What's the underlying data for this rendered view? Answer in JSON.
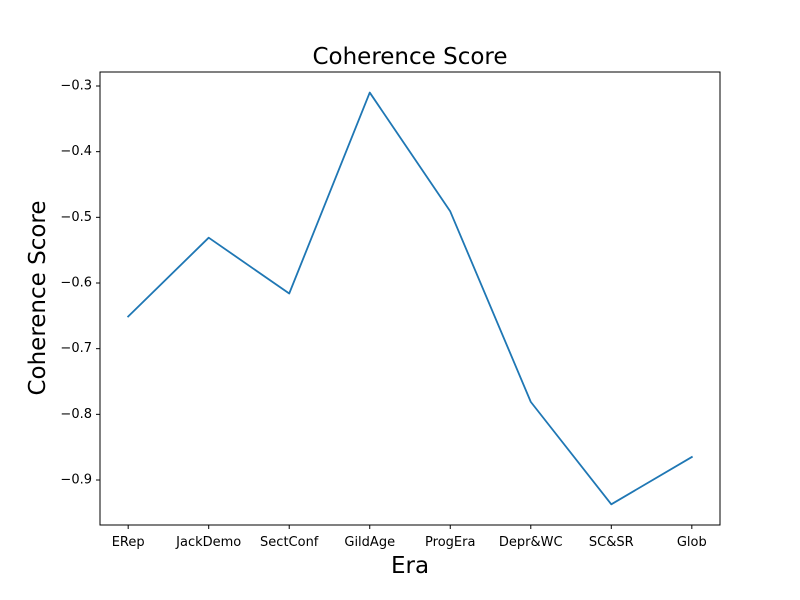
{
  "chart_data": {
    "type": "line",
    "title": "Coherence Score",
    "xlabel": "Era",
    "ylabel": "Coherence Score",
    "categories": [
      "ERep",
      "JackDemo",
      "SectConf",
      "GildAge",
      "ProgEra",
      "Depr&WC",
      "SC&SR",
      "Glob"
    ],
    "series": [
      {
        "values": [
          -0.651,
          -0.531,
          -0.616,
          -0.31,
          -0.491,
          -0.781,
          -0.937,
          -0.865
        ],
        "color": "#1f77b4"
      }
    ],
    "yticks": [
      -0.3,
      -0.4,
      -0.5,
      -0.6,
      -0.7,
      -0.8,
      -0.9
    ],
    "ytick_labels": [
      "−0.3",
      "−0.4",
      "−0.5",
      "−0.6",
      "−0.7",
      "−0.8",
      "−0.9"
    ],
    "ylim": [
      -0.9685,
      -0.2787
    ],
    "grid": false,
    "legend": false
  }
}
